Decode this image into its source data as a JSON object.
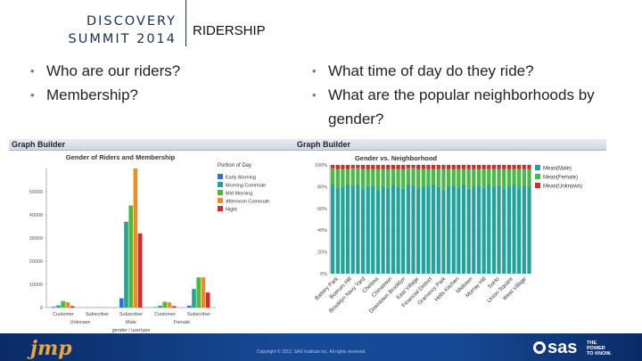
{
  "header": {
    "logo_line1": "DISCOVERY",
    "logo_line2": "SUMMIT 2014",
    "title": "RIDERSHIP"
  },
  "bullets_left": [
    "Who are our riders?",
    "Membership?"
  ],
  "bullets_right": [
    "What time of day do they ride?",
    "What are the popular neighborhoods by gender?"
  ],
  "left_panel": {
    "toolbar": "Graph Builder",
    "chart_data": {
      "type": "bar",
      "title": "Gender of Riders and Membership",
      "xlabel": "gender / usertype",
      "ylabel": "",
      "ylim": [
        0,
        60000
      ],
      "yticks": [
        "0",
        "10000",
        "20000",
        "30000",
        "40000",
        "50000"
      ],
      "categories": [
        "Customer",
        "Subscriber",
        "Subscriber",
        "Customer",
        "Subscriber"
      ],
      "groups": [
        {
          "label": "Unknown",
          "span": [
            0,
            1
          ]
        },
        {
          "label": "Male",
          "span": [
            2,
            2
          ]
        },
        {
          "label": "Female",
          "span": [
            3,
            4
          ]
        }
      ],
      "legend_title": "Portion of Day",
      "series": [
        {
          "name": "Early Morning",
          "color": "#2f6fd6",
          "values": [
            300,
            50,
            4000,
            200,
            800
          ]
        },
        {
          "name": "Morning Commute",
          "color": "#21a29a",
          "values": [
            900,
            50,
            37000,
            800,
            8000
          ]
        },
        {
          "name": "Mid Morning",
          "color": "#4cb848",
          "values": [
            2800,
            100,
            44000,
            2500,
            13000
          ]
        },
        {
          "name": "Afternoon Commute",
          "color": "#f48a1e",
          "values": [
            2300,
            100,
            60000,
            2200,
            13000
          ]
        },
        {
          "name": "Night",
          "color": "#e0242b",
          "values": [
            600,
            50,
            32000,
            600,
            6500
          ]
        }
      ]
    }
  },
  "right_panel": {
    "toolbar": "Graph Builder",
    "chart_data": {
      "type": "bar",
      "title": "Gender vs. Neighborhood",
      "xlabel": "",
      "ylabel": "",
      "ylim": [
        0,
        100
      ],
      "yticks": [
        "0%",
        "20%",
        "40%",
        "60%",
        "80%",
        "100%"
      ],
      "categories": [
        "Battery Park",
        "Boerum Hill",
        "Brooklyn Navy Yard",
        "Chelsea",
        "Chinatown",
        "Downtown Brooklyn",
        "East Village",
        "Financial District",
        "Gramercy Park",
        "Hells Kitchen",
        "Midtown",
        "Murray Hill",
        "SoHo",
        "Union Square",
        "West Village"
      ],
      "legend": [
        {
          "name": "Mean(Male)",
          "color": "#21a29a"
        },
        {
          "name": "Mean(Female)",
          "color": "#4cb848"
        },
        {
          "name": "Mean(Unknown)",
          "color": "#e0242b"
        }
      ],
      "bars_male_pct": [
        82,
        79,
        80,
        82,
        81,
        82,
        78,
        80,
        81,
        77,
        80,
        79,
        82,
        80,
        78,
        82,
        81,
        79,
        80,
        81,
        82,
        80,
        77,
        80,
        81,
        79,
        82,
        78,
        80,
        81,
        79,
        82,
        80,
        81,
        78,
        80,
        82,
        79,
        81,
        80
      ],
      "bars_female_pct": [
        15,
        17,
        16,
        14,
        16,
        15,
        18,
        16,
        15,
        19,
        16,
        17,
        14,
        16,
        18,
        15,
        16,
        17,
        16,
        15,
        14,
        16,
        19,
        16,
        15,
        17,
        14,
        18,
        16,
        15,
        17,
        14,
        16,
        15,
        18,
        16,
        14,
        17,
        15,
        16
      ]
    }
  },
  "footer": {
    "jmp_logo": "jmp",
    "copyright": "Copyright © 2012, SAS Institute Inc. All rights reserved.",
    "sas_logo": "sas",
    "tagline_1": "THE",
    "tagline_2": "POWER",
    "tagline_3": "TO KNOW."
  }
}
